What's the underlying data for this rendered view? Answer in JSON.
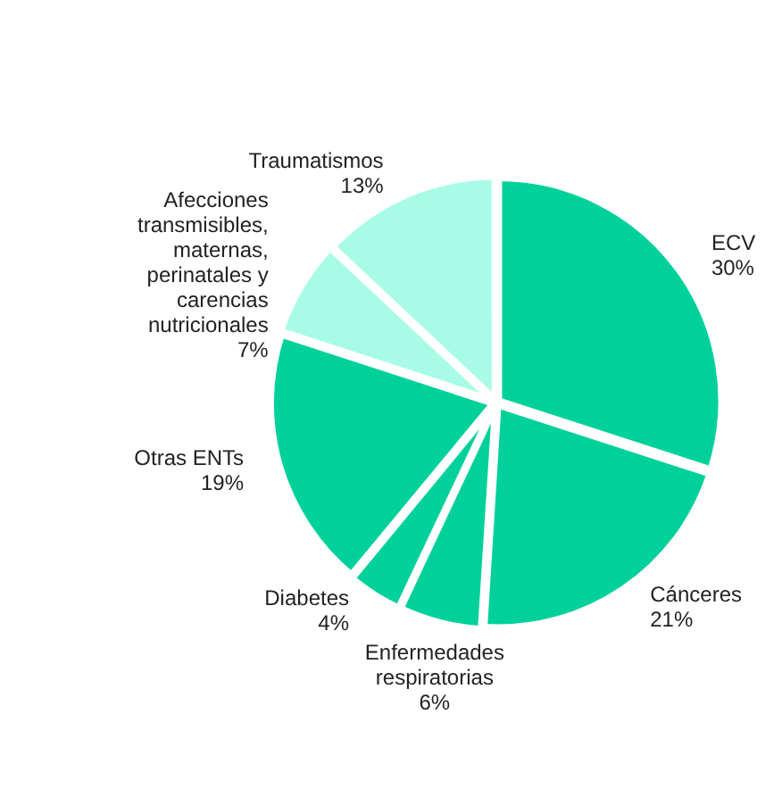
{
  "chart_data": {
    "type": "pie",
    "categories": [
      "ECV",
      "Cánceres",
      "Enfermedades\nrespiratorias",
      "Diabetes",
      "Otras ENTs",
      "Afecciones\ntransmisibles,\nmaternas,\nperinatales y\ncarencias\nnutricionales",
      "Traumatismos"
    ],
    "values": [
      30,
      21,
      6,
      4,
      19,
      7,
      13
    ],
    "value_labels": [
      "30%",
      "21%",
      "6%",
      "4%",
      "19%",
      "7%",
      "13%"
    ],
    "colors": [
      "#00d19b",
      "#00d19b",
      "#00d19b",
      "#00d19b",
      "#00d19b",
      "#a8fce6",
      "#a8fce6"
    ],
    "legend": false
  }
}
